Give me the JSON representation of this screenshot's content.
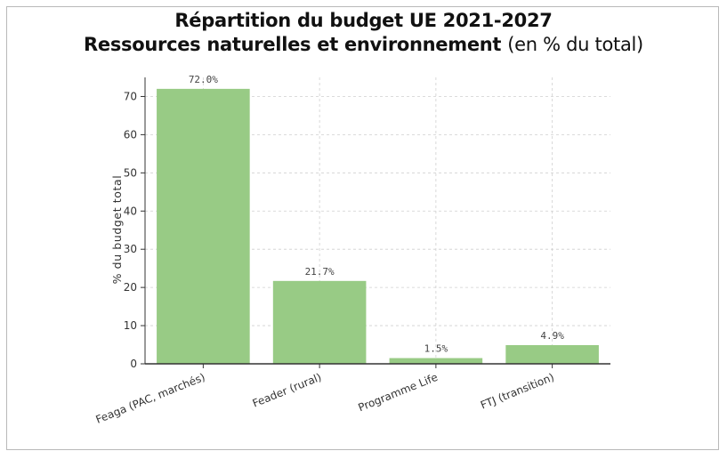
{
  "chart_data": {
    "type": "bar",
    "title": "Répartition du budget UE 2021-2027",
    "subtitle": "Ressources naturelles et environnement",
    "subtitle_unit": "(en % du total)",
    "categories": [
      "Feaga (PAC, marchés)",
      "Feader (rural)",
      "Programme Life",
      "FTJ (transition)"
    ],
    "values": [
      72.0,
      21.7,
      1.5,
      4.9
    ],
    "data_labels": [
      "72.0%",
      "21.7%",
      "1.5%",
      "4.9%"
    ],
    "xlabel": "",
    "ylabel": "% du budget total",
    "ylim": [
      0,
      75
    ],
    "yticks": [
      0,
      10,
      20,
      30,
      40,
      50,
      60,
      70
    ],
    "grid": true,
    "bar_color": "#98cb85",
    "grid_color": "#cfcfcf",
    "axis_color": "#333333"
  }
}
